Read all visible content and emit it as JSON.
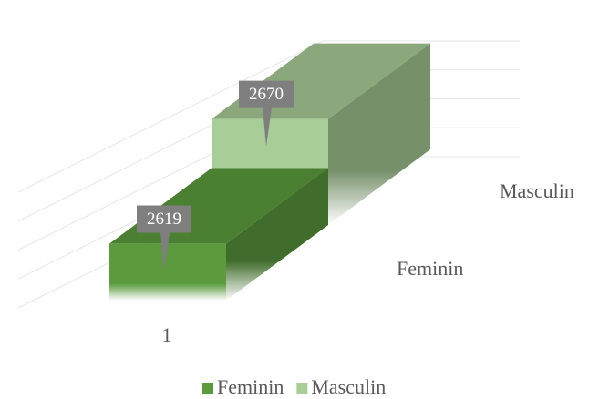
{
  "chart_data": {
    "type": "bar3d",
    "categories": [
      "1"
    ],
    "series": [
      {
        "name": "Feminin",
        "color": "#5b9b3d",
        "values": [
          2619
        ]
      },
      {
        "name": "Masculin",
        "color": "#a9cd97",
        "values": [
          2670
        ]
      }
    ],
    "ylim": [
      2560,
      2680
    ],
    "yticks": [
      2560,
      2590,
      2620,
      2650,
      2680
    ],
    "grid": true,
    "legend": "bottom"
  }
}
